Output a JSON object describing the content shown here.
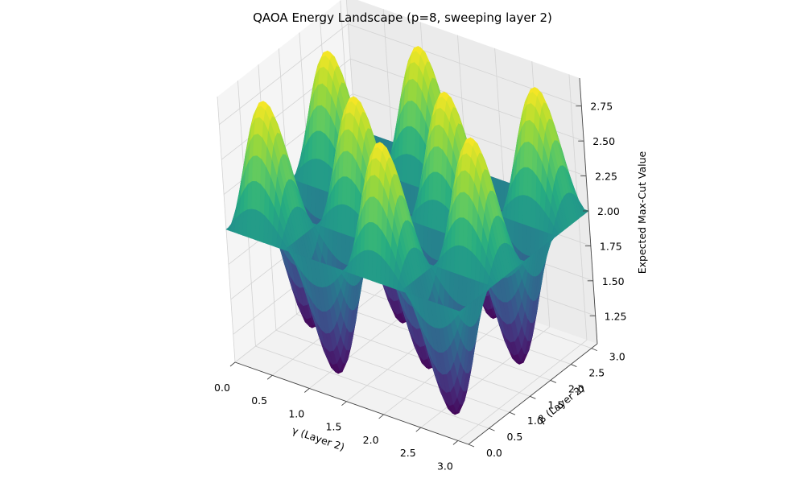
{
  "chart_data": {
    "type": "surface",
    "title": "QAOA Energy Landscape (p=8, sweeping layer 2)",
    "xlabel": "γ (Layer 2)",
    "ylabel": "β (Layer 2)",
    "zlabel": "Expected Max-Cut Value",
    "xlim": [
      0,
      3.14159
    ],
    "ylim": [
      0,
      3.14159
    ],
    "zlim": [
      1.05,
      2.95
    ],
    "xticks": [
      "0.0",
      "0.5",
      "1.0",
      "1.5",
      "2.0",
      "2.5",
      "3.0"
    ],
    "yticks": [
      "0.0",
      "0.5",
      "1.0",
      "1.5",
      "2.0",
      "2.5",
      "3.0"
    ],
    "zticks": [
      "1.25",
      "1.50",
      "1.75",
      "2.00",
      "2.25",
      "2.50",
      "2.75"
    ],
    "colormap": "viridis",
    "surface": {
      "formula": "z = 2.0 + 0.9 * sin(4*gamma) * sin(4*beta)",
      "gamma_range": [
        0,
        3.14159
      ],
      "beta_range": [
        0,
        3.14159
      ],
      "max": 2.9,
      "min": 1.1,
      "baseline": 2.0
    }
  }
}
